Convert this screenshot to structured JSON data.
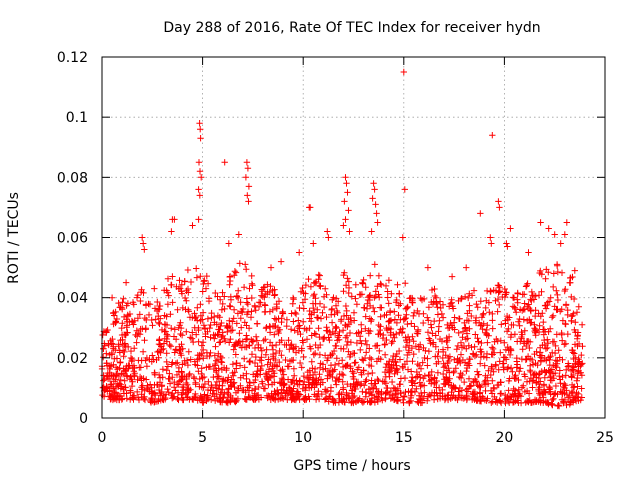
{
  "chart_data": {
    "type": "scatter",
    "title": "Day 288 of 2016, Rate Of TEC Index for receiver hydn",
    "xlabel": "GPS time / hours",
    "ylabel": "ROTI / TECUs",
    "xlim": [
      0,
      25
    ],
    "ylim": [
      0,
      0.12
    ],
    "xticks": [
      0,
      5,
      10,
      15,
      20,
      25
    ],
    "xtick_labels": [
      "0",
      "5",
      "10",
      "15",
      "20",
      "25"
    ],
    "yticks": [
      0,
      0.02,
      0.04,
      0.06,
      0.08,
      0.1,
      0.12
    ],
    "ytick_labels": [
      "0",
      "0.02",
      "0.04",
      "0.06",
      "0.08",
      "0.1",
      "0.12"
    ],
    "grid": true,
    "marker": "+",
    "color": "#ff0000",
    "series": [
      {
        "name": "ROTI",
        "points": [
          [
            4.85,
            0.098
          ],
          [
            4.88,
            0.096
          ],
          [
            4.9,
            0.093
          ],
          [
            4.82,
            0.085
          ],
          [
            4.87,
            0.082
          ],
          [
            4.93,
            0.08
          ],
          [
            4.8,
            0.076
          ],
          [
            4.86,
            0.074
          ],
          [
            6.1,
            0.085
          ],
          [
            7.2,
            0.085
          ],
          [
            7.25,
            0.083
          ],
          [
            7.15,
            0.08
          ],
          [
            7.3,
            0.077
          ],
          [
            7.22,
            0.074
          ],
          [
            7.28,
            0.072
          ],
          [
            3.5,
            0.066
          ],
          [
            3.6,
            0.066
          ],
          [
            3.45,
            0.062
          ],
          [
            4.5,
            0.064
          ],
          [
            4.8,
            0.066
          ],
          [
            10.3,
            0.07
          ],
          [
            10.35,
            0.07
          ],
          [
            12.1,
            0.08
          ],
          [
            12.15,
            0.078
          ],
          [
            12.2,
            0.075
          ],
          [
            12.05,
            0.072
          ],
          [
            12.25,
            0.069
          ],
          [
            12.1,
            0.066
          ],
          [
            12.0,
            0.064
          ],
          [
            12.3,
            0.062
          ],
          [
            13.5,
            0.078
          ],
          [
            13.55,
            0.076
          ],
          [
            13.45,
            0.073
          ],
          [
            13.6,
            0.071
          ],
          [
            13.65,
            0.068
          ],
          [
            13.7,
            0.065
          ],
          [
            13.4,
            0.062
          ],
          [
            15.0,
            0.115
          ],
          [
            15.05,
            0.076
          ],
          [
            14.95,
            0.06
          ],
          [
            19.4,
            0.094
          ],
          [
            19.7,
            0.072
          ],
          [
            19.75,
            0.07
          ],
          [
            18.8,
            0.068
          ],
          [
            20.3,
            0.063
          ],
          [
            21.8,
            0.065
          ],
          [
            22.2,
            0.063
          ],
          [
            22.5,
            0.061
          ],
          [
            23.1,
            0.065
          ],
          [
            23.0,
            0.061
          ],
          [
            2.0,
            0.06
          ],
          [
            2.05,
            0.058
          ],
          [
            2.1,
            0.056
          ],
          [
            10.5,
            0.058
          ],
          [
            11.2,
            0.062
          ],
          [
            11.25,
            0.06
          ],
          [
            6.3,
            0.058
          ],
          [
            6.8,
            0.061
          ],
          [
            9.8,
            0.055
          ],
          [
            16.2,
            0.05
          ],
          [
            17.4,
            0.047
          ],
          [
            18.1,
            0.05
          ],
          [
            20.1,
            0.058
          ],
          [
            20.15,
            0.057
          ],
          [
            21.2,
            0.055
          ],
          [
            8.4,
            0.05
          ],
          [
            8.9,
            0.052
          ],
          [
            1.2,
            0.045
          ],
          [
            0.5,
            0.04
          ],
          [
            2.6,
            0.043
          ],
          [
            19.3,
            0.06
          ],
          [
            19.35,
            0.058
          ],
          [
            22.8,
            0.058
          ],
          [
            23.5,
            0.049
          ],
          [
            23.7,
            0.037
          ]
        ]
      }
    ],
    "band_profile": {
      "x": [
        0,
        0.5,
        1,
        1.5,
        2,
        2.5,
        3,
        3.5,
        4,
        4.5,
        5,
        5.5,
        6,
        6.5,
        7,
        7.5,
        8,
        8.5,
        9,
        9.5,
        10,
        10.5,
        11,
        11.5,
        12,
        12.5,
        13,
        13.5,
        14,
        14.5,
        15,
        15.5,
        16,
        16.5,
        17,
        17.5,
        18,
        18.5,
        19,
        19.5,
        20,
        20.5,
        21,
        21.5,
        22,
        22.5,
        23,
        23.5,
        23.9
      ],
      "upper": [
        0.028,
        0.035,
        0.04,
        0.038,
        0.046,
        0.04,
        0.042,
        0.05,
        0.046,
        0.052,
        0.05,
        0.045,
        0.042,
        0.05,
        0.052,
        0.048,
        0.044,
        0.045,
        0.038,
        0.04,
        0.045,
        0.05,
        0.048,
        0.04,
        0.05,
        0.044,
        0.046,
        0.052,
        0.048,
        0.044,
        0.046,
        0.042,
        0.04,
        0.044,
        0.04,
        0.04,
        0.042,
        0.044,
        0.042,
        0.045,
        0.044,
        0.04,
        0.046,
        0.05,
        0.05,
        0.052,
        0.05,
        0.046,
        0.03
      ],
      "lower": [
        0.007,
        0.006,
        0.006,
        0.006,
        0.006,
        0.005,
        0.006,
        0.006,
        0.006,
        0.006,
        0.005,
        0.006,
        0.005,
        0.005,
        0.006,
        0.006,
        0.006,
        0.006,
        0.006,
        0.006,
        0.006,
        0.006,
        0.006,
        0.005,
        0.005,
        0.005,
        0.005,
        0.005,
        0.006,
        0.006,
        0.005,
        0.005,
        0.005,
        0.006,
        0.006,
        0.006,
        0.006,
        0.006,
        0.005,
        0.005,
        0.005,
        0.005,
        0.005,
        0.005,
        0.005,
        0.004,
        0.004,
        0.005,
        0.006
      ]
    }
  }
}
